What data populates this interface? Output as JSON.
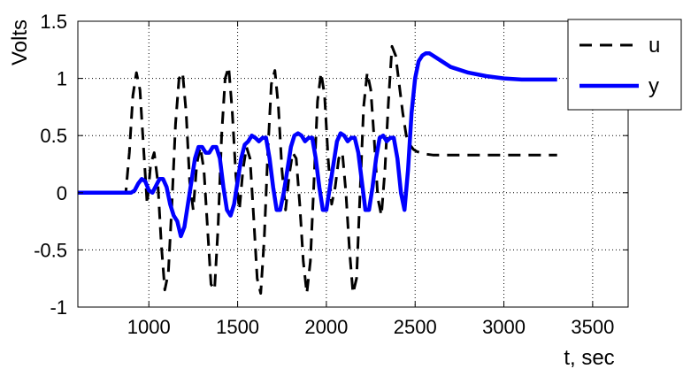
{
  "chart_data": {
    "type": "line",
    "title": "",
    "xlabel": "t, sec",
    "ylabel": "Volts",
    "xlim": [
      600,
      3700
    ],
    "ylim": [
      -1,
      1.5
    ],
    "xticks": [
      1000,
      1500,
      2000,
      2500,
      3000,
      3500
    ],
    "xtick_labels": [
      "1000",
      "1500",
      "2000",
      "2500",
      "3000",
      "3500"
    ],
    "yticks": [
      -1,
      -0.5,
      0,
      0.5,
      1,
      1.5
    ],
    "ytick_labels": [
      "-1",
      "-0.5",
      "0",
      "0.5",
      "1",
      "1.5"
    ],
    "grid": true,
    "legend_position": "top-right",
    "series": [
      {
        "name": "u",
        "color": "#000000",
        "style": "dashed",
        "x": [
          600,
          870,
          890,
          910,
          930,
          950,
          970,
          990,
          1010,
          1030,
          1050,
          1070,
          1090,
          1110,
          1130,
          1150,
          1170,
          1190,
          1210,
          1230,
          1250,
          1270,
          1290,
          1310,
          1330,
          1350,
          1370,
          1390,
          1410,
          1430,
          1450,
          1470,
          1490,
          1510,
          1530,
          1550,
          1570,
          1590,
          1610,
          1630,
          1650,
          1670,
          1690,
          1710,
          1730,
          1750,
          1770,
          1790,
          1810,
          1830,
          1850,
          1870,
          1890,
          1910,
          1930,
          1950,
          1970,
          1990,
          2010,
          2030,
          2050,
          2070,
          2090,
          2110,
          2130,
          2150,
          2170,
          2190,
          2210,
          2230,
          2250,
          2270,
          2290,
          2310,
          2330,
          2350,
          2370,
          2390,
          2410,
          2430,
          2450,
          2470,
          2490,
          2510,
          2550,
          2600,
          2650,
          2700,
          2800,
          3000,
          3300
        ],
        "y": [
          0,
          0,
          0.35,
          0.85,
          1.05,
          0.9,
          0.4,
          -0.1,
          0.25,
          0.35,
          0.1,
          -0.45,
          -0.85,
          -0.7,
          -0.1,
          0.6,
          1.0,
          1.05,
          0.7,
          0.1,
          -0.15,
          0.25,
          0.4,
          0.2,
          -0.3,
          -0.8,
          -0.85,
          -0.3,
          0.5,
          1.0,
          1.1,
          0.7,
          0.15,
          -0.15,
          0.2,
          0.4,
          0.3,
          -0.2,
          -0.75,
          -0.88,
          -0.4,
          0.35,
          0.95,
          1.07,
          0.75,
          0.2,
          -0.15,
          0.15,
          0.35,
          0.3,
          -0.1,
          -0.6,
          -0.88,
          -0.6,
          0.1,
          0.8,
          1.05,
          0.85,
          0.3,
          -0.1,
          0.05,
          0.3,
          0.35,
          0.0,
          -0.5,
          -0.88,
          -0.75,
          0.0,
          0.75,
          1.05,
          0.9,
          0.45,
          -0.05,
          -0.2,
          0.2,
          0.8,
          1.28,
          1.2,
          0.95,
          0.7,
          0.5,
          0.42,
          0.38,
          0.36,
          0.34,
          0.33,
          0.33,
          0.33,
          0.33,
          0.33,
          0.33
        ]
      },
      {
        "name": "y",
        "color": "#0000ff",
        "style": "solid",
        "x": [
          600,
          900,
          920,
          940,
          960,
          980,
          1000,
          1020,
          1040,
          1060,
          1080,
          1100,
          1120,
          1140,
          1160,
          1180,
          1200,
          1220,
          1240,
          1260,
          1280,
          1300,
          1320,
          1340,
          1360,
          1380,
          1400,
          1420,
          1440,
          1460,
          1480,
          1500,
          1520,
          1540,
          1560,
          1580,
          1600,
          1620,
          1640,
          1660,
          1680,
          1700,
          1720,
          1740,
          1760,
          1780,
          1800,
          1820,
          1840,
          1860,
          1880,
          1900,
          1920,
          1940,
          1960,
          1980,
          2000,
          2020,
          2040,
          2060,
          2080,
          2100,
          2120,
          2140,
          2160,
          2180,
          2200,
          2220,
          2240,
          2260,
          2280,
          2300,
          2320,
          2340,
          2360,
          2380,
          2400,
          2420,
          2440,
          2460,
          2480,
          2500,
          2520,
          2540,
          2560,
          2580,
          2600,
          2650,
          2700,
          2800,
          2900,
          3000,
          3100,
          3300
        ],
        "y": [
          0,
          0,
          0.02,
          0.08,
          0.12,
          0.1,
          0.02,
          0.0,
          0.06,
          0.12,
          0.12,
          0.05,
          -0.1,
          -0.2,
          -0.25,
          -0.38,
          -0.3,
          -0.1,
          0.1,
          0.3,
          0.4,
          0.4,
          0.35,
          0.35,
          0.4,
          0.4,
          0.3,
          0.05,
          -0.15,
          -0.2,
          -0.1,
          0.1,
          0.3,
          0.42,
          0.45,
          0.5,
          0.48,
          0.45,
          0.48,
          0.48,
          0.3,
          0.05,
          -0.15,
          -0.15,
          0.0,
          0.2,
          0.4,
          0.5,
          0.52,
          0.5,
          0.45,
          0.48,
          0.48,
          0.3,
          0.05,
          -0.15,
          -0.15,
          0.05,
          0.25,
          0.45,
          0.52,
          0.5,
          0.45,
          0.48,
          0.48,
          0.35,
          0.1,
          -0.15,
          -0.15,
          0.05,
          0.3,
          0.48,
          0.5,
          0.45,
          0.48,
          0.48,
          0.3,
          0.0,
          -0.15,
          0.2,
          0.7,
          1.0,
          1.15,
          1.2,
          1.22,
          1.22,
          1.2,
          1.15,
          1.1,
          1.05,
          1.02,
          1.0,
          0.99,
          0.99
        ]
      }
    ]
  }
}
